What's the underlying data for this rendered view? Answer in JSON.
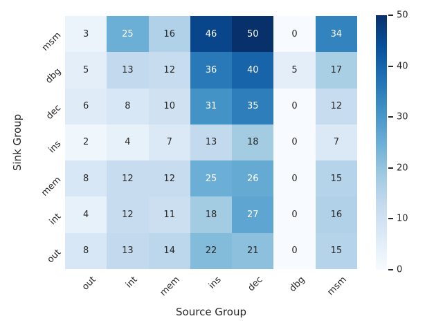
{
  "figure": {
    "background": "#ffffff",
    "text_color": "#262626"
  },
  "chart_data": {
    "type": "heatmap",
    "title": "",
    "xlabel": "Source Group",
    "ylabel": "Sink Group",
    "x_categories": [
      "out",
      "int",
      "mem",
      "ins",
      "dec",
      "dbg",
      "msm"
    ],
    "y_categories": [
      "msm",
      "dbg",
      "dec",
      "ins",
      "mem",
      "int",
      "out"
    ],
    "values": [
      [
        3,
        25,
        16,
        46,
        50,
        0,
        34
      ],
      [
        5,
        13,
        12,
        36,
        40,
        5,
        17
      ],
      [
        6,
        8,
        10,
        31,
        35,
        0,
        12
      ],
      [
        2,
        4,
        7,
        13,
        18,
        0,
        7
      ],
      [
        8,
        12,
        12,
        25,
        26,
        0,
        15
      ],
      [
        4,
        12,
        11,
        18,
        27,
        0,
        16
      ],
      [
        8,
        13,
        14,
        22,
        21,
        0,
        15
      ]
    ],
    "vmin": 0,
    "vmax": 50,
    "colormap": "Blues",
    "colormap_stops": [
      [
        0.0,
        [
          247,
          251,
          255
        ]
      ],
      [
        0.125,
        [
          222,
          235,
          247
        ]
      ],
      [
        0.25,
        [
          198,
          219,
          239
        ]
      ],
      [
        0.375,
        [
          158,
          202,
          225
        ]
      ],
      [
        0.5,
        [
          107,
          174,
          214
        ]
      ],
      [
        0.625,
        [
          66,
          146,
          198
        ]
      ],
      [
        0.75,
        [
          33,
          113,
          181
        ]
      ],
      [
        0.875,
        [
          8,
          81,
          156
        ]
      ],
      [
        1.0,
        [
          8,
          48,
          107
        ]
      ]
    ],
    "colorbar_ticks": [
      0,
      10,
      20,
      30,
      40,
      50
    ],
    "annotation_dark_text_color": "#262626",
    "annotation_light_text_color": "#ffffff",
    "legend_position": "right",
    "grid": false,
    "tick_rotation_deg": 45
  }
}
